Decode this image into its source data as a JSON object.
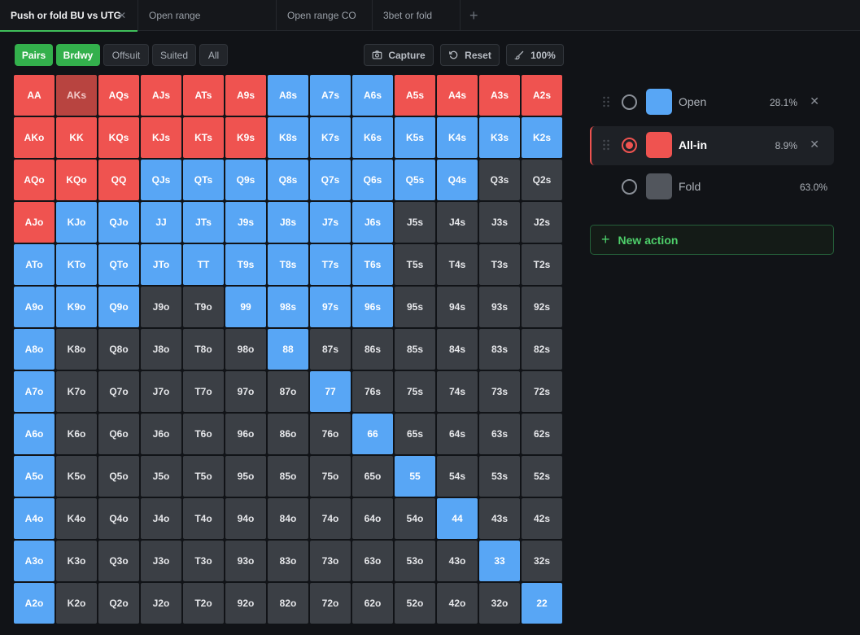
{
  "tabs": [
    {
      "label": "Push or fold BU vs UTG",
      "active": true
    },
    {
      "label": "Open range"
    },
    {
      "label": "Open range CO"
    },
    {
      "label": "3bet or fold"
    }
  ],
  "toolbar": {
    "filters": [
      "Pairs",
      "Brdwy",
      "Offsuit",
      "Suited",
      "All"
    ],
    "capture": "Capture",
    "reset": "Reset",
    "zoom": "100%"
  },
  "colors": {
    "open": "#58a6f5",
    "allin": "#ef5350",
    "fold": "#3b3f45",
    "accent": "#33b04c"
  },
  "actions": [
    {
      "name": "Open",
      "pct": "28.1%",
      "color": "#58a6f5",
      "selected": false,
      "removable": true
    },
    {
      "name": "All-in",
      "pct": "8.9%",
      "color": "#ef5350",
      "selected": true,
      "removable": true
    },
    {
      "name": "Fold",
      "pct": "63.0%",
      "color": "#52565d",
      "selected": false,
      "removable": false
    }
  ],
  "new_action": "New action",
  "grid": {
    "rows": [
      [
        "AA",
        "AKs",
        "AQs",
        "AJs",
        "ATs",
        "A9s",
        "A8s",
        "A7s",
        "A6s",
        "A5s",
        "A4s",
        "A3s",
        "A2s"
      ],
      [
        "AKo",
        "KK",
        "KQs",
        "KJs",
        "KTs",
        "K9s",
        "K8s",
        "K7s",
        "K6s",
        "K5s",
        "K4s",
        "K3s",
        "K2s"
      ],
      [
        "AQo",
        "KQo",
        "QQ",
        "QJs",
        "QTs",
        "Q9s",
        "Q8s",
        "Q7s",
        "Q6s",
        "Q5s",
        "Q4s",
        "Q3s",
        "Q2s"
      ],
      [
        "AJo",
        "KJo",
        "QJo",
        "JJ",
        "JTs",
        "J9s",
        "J8s",
        "J7s",
        "J6s",
        "J5s",
        "J4s",
        "J3s",
        "J2s"
      ],
      [
        "ATo",
        "KTo",
        "QTo",
        "JTo",
        "TT",
        "T9s",
        "T8s",
        "T7s",
        "T6s",
        "T5s",
        "T4s",
        "T3s",
        "T2s"
      ],
      [
        "A9o",
        "K9o",
        "Q9o",
        "J9o",
        "T9o",
        "99",
        "98s",
        "97s",
        "96s",
        "95s",
        "94s",
        "93s",
        "92s"
      ],
      [
        "A8o",
        "K8o",
        "Q8o",
        "J8o",
        "T8o",
        "98o",
        "88",
        "87s",
        "86s",
        "85s",
        "84s",
        "83s",
        "82s"
      ],
      [
        "A7o",
        "K7o",
        "Q7o",
        "J7o",
        "T7o",
        "97o",
        "87o",
        "77",
        "76s",
        "75s",
        "74s",
        "73s",
        "72s"
      ],
      [
        "A6o",
        "K6o",
        "Q6o",
        "J6o",
        "T6o",
        "96o",
        "86o",
        "76o",
        "66",
        "65s",
        "64s",
        "63s",
        "62s"
      ],
      [
        "A5o",
        "K5o",
        "Q5o",
        "J5o",
        "T5o",
        "95o",
        "85o",
        "75o",
        "65o",
        "55",
        "54s",
        "53s",
        "52s"
      ],
      [
        "A4o",
        "K4o",
        "Q4o",
        "J4o",
        "T4o",
        "94o",
        "84o",
        "74o",
        "64o",
        "54o",
        "44",
        "43s",
        "42s"
      ],
      [
        "A3o",
        "K3o",
        "Q3o",
        "J3o",
        "T3o",
        "93o",
        "83o",
        "73o",
        "63o",
        "53o",
        "43o",
        "33",
        "32s"
      ],
      [
        "A2o",
        "K2o",
        "Q2o",
        "J2o",
        "T2o",
        "92o",
        "82o",
        "72o",
        "62o",
        "52o",
        "42o",
        "32o",
        "22"
      ]
    ],
    "states": [
      "AHAAAABBBAAAA",
      "AAAAAABBBBBBB",
      "AAABBBBBBBBFF",
      "ABBBBBBBBFFFF",
      "BBBBBBBBBFFFF",
      "BBBFFBBBBFFFF",
      "BFFFFFBFFFFFF",
      "BFFFFFFBFFFFF",
      "BFFFFFFFBFFFF",
      "BFFFFFFFFBFFF",
      "BFFFFFFFFFBFF",
      "BFFFFFFFFFFBF",
      "BFFFFFFFFFFFB"
    ],
    "state_legend": {
      "A": "All-in",
      "B": "Open",
      "F": "Fold",
      "H": "All-in (hovered)"
    }
  }
}
